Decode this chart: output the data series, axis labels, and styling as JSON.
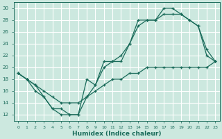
{
  "xlabel": "Humidex (Indice chaleur)",
  "bg_color": "#cce8df",
  "grid_color": "#ffffff",
  "line_color": "#1a6b5a",
  "xlim": [
    -0.5,
    23.5
  ],
  "ylim": [
    11,
    31
  ],
  "xticks": [
    0,
    1,
    2,
    3,
    4,
    5,
    6,
    7,
    8,
    9,
    10,
    11,
    12,
    13,
    14,
    15,
    16,
    17,
    18,
    19,
    20,
    21,
    22,
    23
  ],
  "yticks": [
    12,
    14,
    16,
    18,
    20,
    22,
    24,
    26,
    28,
    30
  ],
  "line1_x": [
    0,
    1,
    2,
    3,
    4,
    5,
    6,
    7,
    8,
    9,
    10,
    11,
    12,
    13,
    14,
    15,
    16,
    17,
    18,
    19,
    20,
    21,
    22,
    23
  ],
  "line1_y": [
    19,
    18,
    17,
    16,
    15,
    14,
    14,
    14,
    15,
    16,
    17,
    18,
    18,
    19,
    19,
    20,
    20,
    20,
    20,
    20,
    20,
    20,
    20,
    21
  ],
  "line2_x": [
    0,
    1,
    2,
    3,
    4,
    5,
    6,
    7,
    8,
    9,
    10,
    11,
    12,
    13,
    14,
    15,
    16,
    17,
    18,
    19,
    20,
    21,
    22,
    23
  ],
  "line2_y": [
    19,
    18,
    17,
    15,
    13,
    13,
    12,
    12,
    15,
    17,
    20,
    21,
    21,
    24,
    27,
    28,
    28,
    29,
    29,
    29,
    28,
    27,
    22,
    21
  ],
  "line3_x": [
    0,
    1,
    2,
    3,
    4,
    5,
    6,
    7,
    8,
    9,
    10,
    11,
    12,
    13,
    14,
    15,
    16,
    17,
    18,
    19,
    20,
    21,
    22,
    23
  ],
  "line3_y": [
    19,
    18,
    16,
    15,
    13,
    12,
    12,
    12,
    18,
    17,
    21,
    21,
    22,
    24,
    28,
    28,
    28,
    30,
    30,
    29,
    28,
    27,
    23,
    21
  ]
}
